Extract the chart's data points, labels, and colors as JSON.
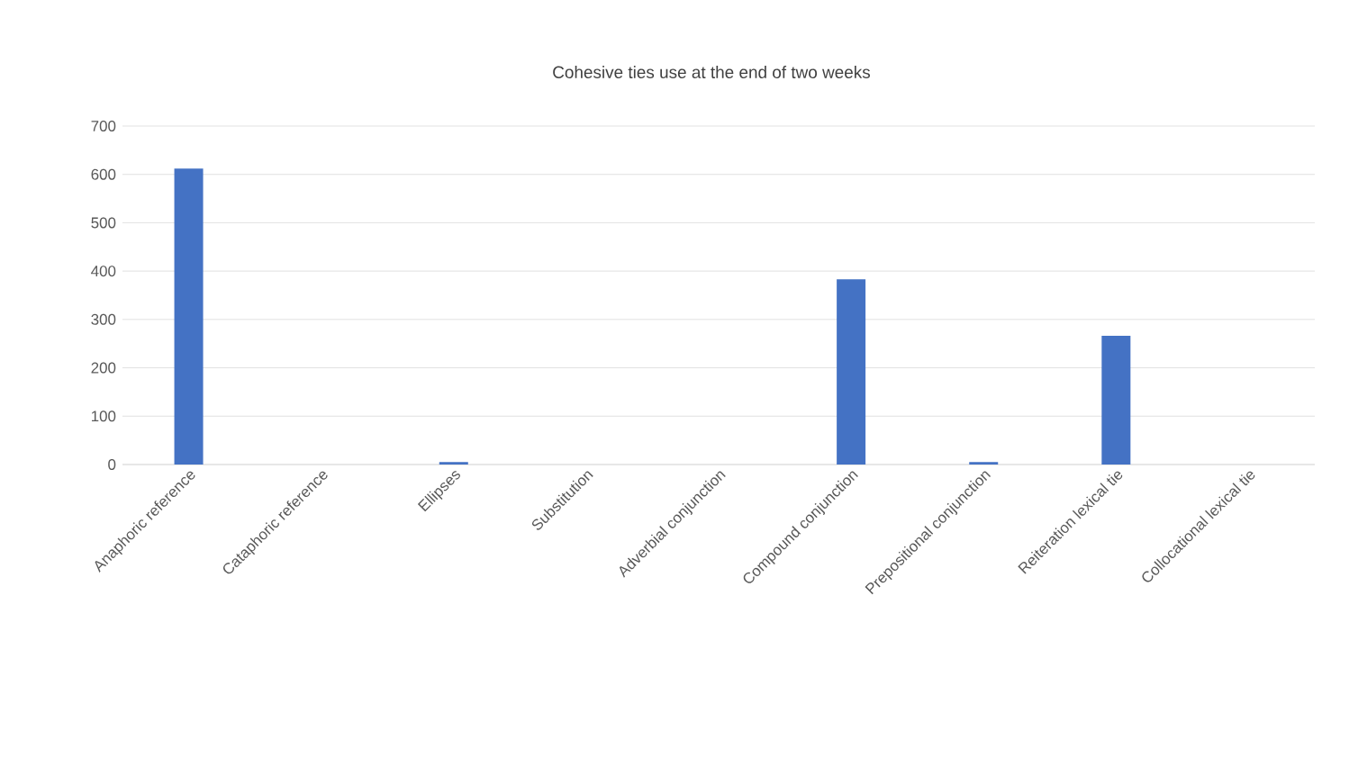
{
  "chart_data": {
    "type": "bar",
    "title": "Cohesive ties use at the end of two weeks",
    "categories": [
      "Anaphoric reference",
      "Cataphoric reference",
      "Ellipses",
      "Substitution",
      "Adverbial conjunction",
      "Compound conjunction",
      "Prepositional conjunction",
      "Reiteration lexical tie",
      "Collocational lexical tie"
    ],
    "values": [
      612,
      0,
      5,
      0,
      0,
      383,
      5,
      266,
      0
    ],
    "color": "#4472c4",
    "ylim": [
      0,
      700
    ],
    "yticks": [
      0,
      100,
      200,
      300,
      400,
      500,
      600,
      700
    ],
    "grid": "y"
  }
}
